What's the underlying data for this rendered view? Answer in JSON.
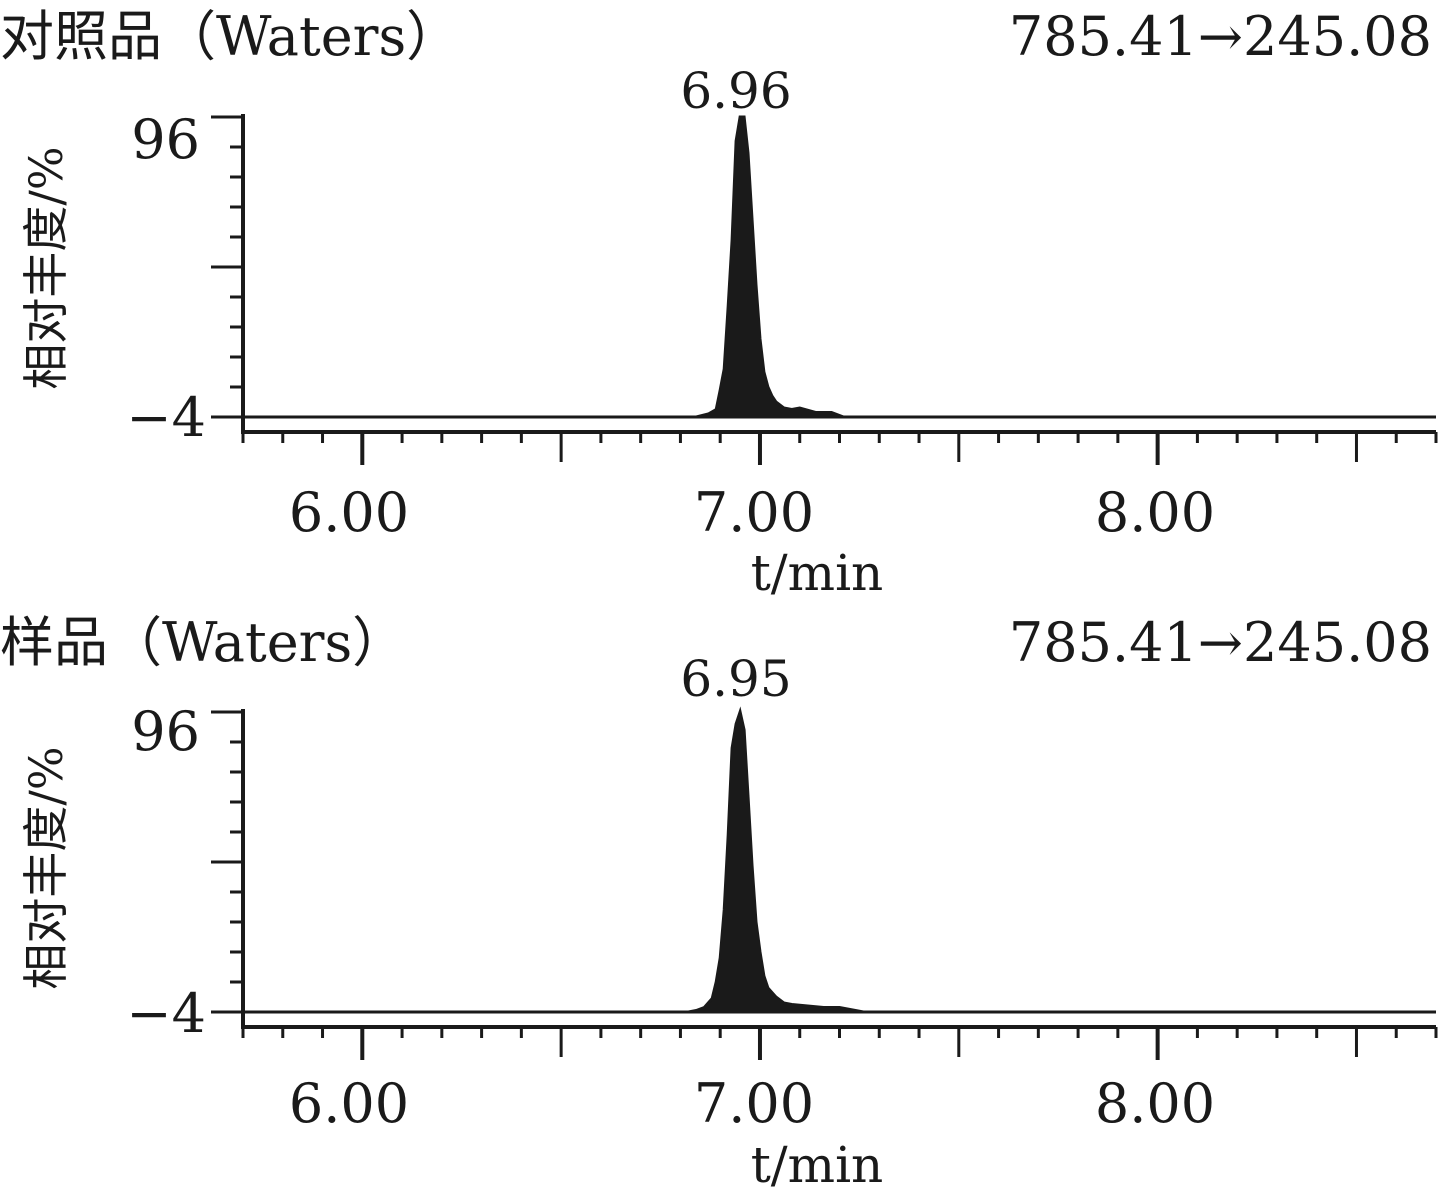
{
  "chart_data": [
    {
      "type": "area",
      "title": "对照品（Waters）",
      "transition": "785.41→245.08",
      "peak_label": "6.96",
      "peak_rt": 6.96,
      "xlabel": "t/min",
      "ylabel": "相对丰度/%",
      "xlim": [
        5.7,
        8.7
      ],
      "ylim": [
        -4,
        96
      ],
      "xticks": [
        6.0,
        7.0,
        8.0
      ],
      "xtick_labels": [
        "6.00",
        "7.00",
        "8.00"
      ],
      "yticks": [
        96,
        -4
      ],
      "ytick_labels": [
        "96",
        "−4"
      ],
      "grid": false,
      "series": [
        {
          "x": [
            5.7,
            6.84,
            6.87,
            6.89,
            6.9,
            6.91,
            6.92,
            6.93,
            6.94,
            6.95,
            6.96,
            6.97,
            6.98,
            6.99,
            7.0,
            7.01,
            7.02,
            7.03,
            7.04,
            7.06,
            7.08,
            7.1,
            7.14,
            7.18,
            7.2,
            7.21,
            8.7
          ],
          "y": [
            -4,
            -4,
            -3,
            -1.5,
            5,
            12,
            33,
            55,
            88,
            96,
            96,
            84,
            62,
            40,
            22,
            11,
            6,
            3,
            1,
            -1,
            -1.5,
            -1,
            -2.5,
            -2.5,
            -3.5,
            -4,
            -4
          ]
        }
      ]
    },
    {
      "type": "area",
      "title": "样品（Waters）",
      "transition": "785.41→245.08",
      "peak_label": "6.95",
      "peak_rt": 6.95,
      "xlabel": "t/min",
      "ylabel": "相对丰度/%",
      "xlim": [
        5.7,
        8.7
      ],
      "ylim": [
        -4,
        96
      ],
      "xticks": [
        6.0,
        7.0,
        8.0
      ],
      "xtick_labels": [
        "6.00",
        "7.00",
        "8.00"
      ],
      "yticks": [
        96,
        -4
      ],
      "ytick_labels": [
        "96",
        "−4"
      ],
      "grid": false,
      "series": [
        {
          "x": [
            5.7,
            6.82,
            6.84,
            6.86,
            6.88,
            6.89,
            6.9,
            6.91,
            6.92,
            6.93,
            6.94,
            6.95,
            6.96,
            6.97,
            6.98,
            6.99,
            7.0,
            7.01,
            7.02,
            7.04,
            7.06,
            7.08,
            7.12,
            7.16,
            7.2,
            7.24,
            7.26,
            8.7
          ],
          "y": [
            -4,
            -4,
            -3.5,
            -2.5,
            0.5,
            6,
            14,
            30,
            55,
            84,
            92,
            96,
            90,
            68,
            45,
            26,
            16,
            8,
            4,
            1,
            -1,
            -1.5,
            -2,
            -2.5,
            -2.5,
            -3.5,
            -4,
            -4
          ]
        }
      ]
    }
  ]
}
